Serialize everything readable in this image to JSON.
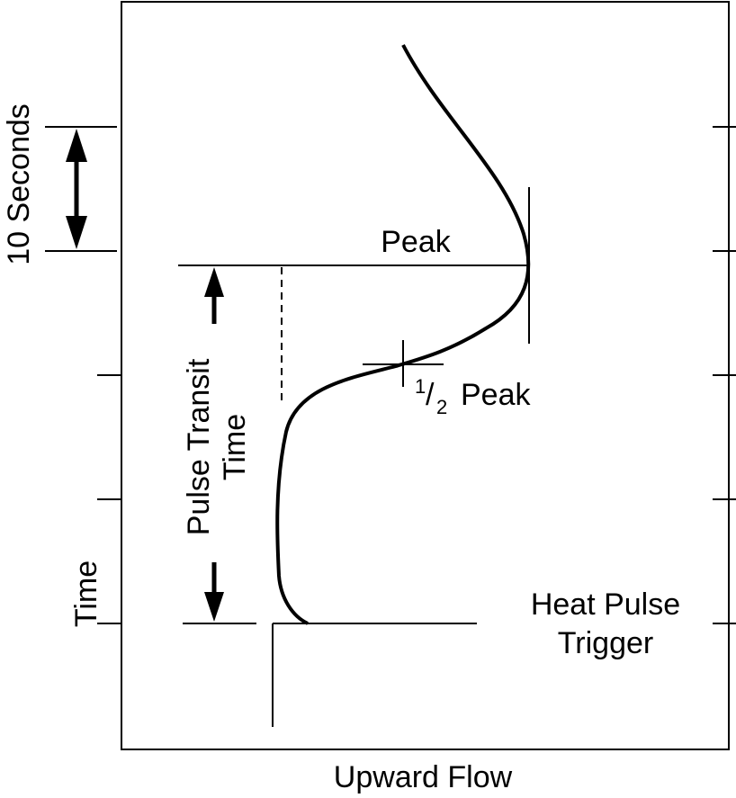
{
  "labels": {
    "time_span": "10 Seconds",
    "peak": "Peak",
    "half_peak": {
      "numerator": "1",
      "separator": "/",
      "denominator": "2",
      "text": "Peak"
    },
    "transit": [
      "Pulse Transit",
      "Time"
    ],
    "y_axis": "Time",
    "trigger": [
      "Heat Pulse",
      "Trigger"
    ],
    "x_axis": "Upward Flow"
  }
}
